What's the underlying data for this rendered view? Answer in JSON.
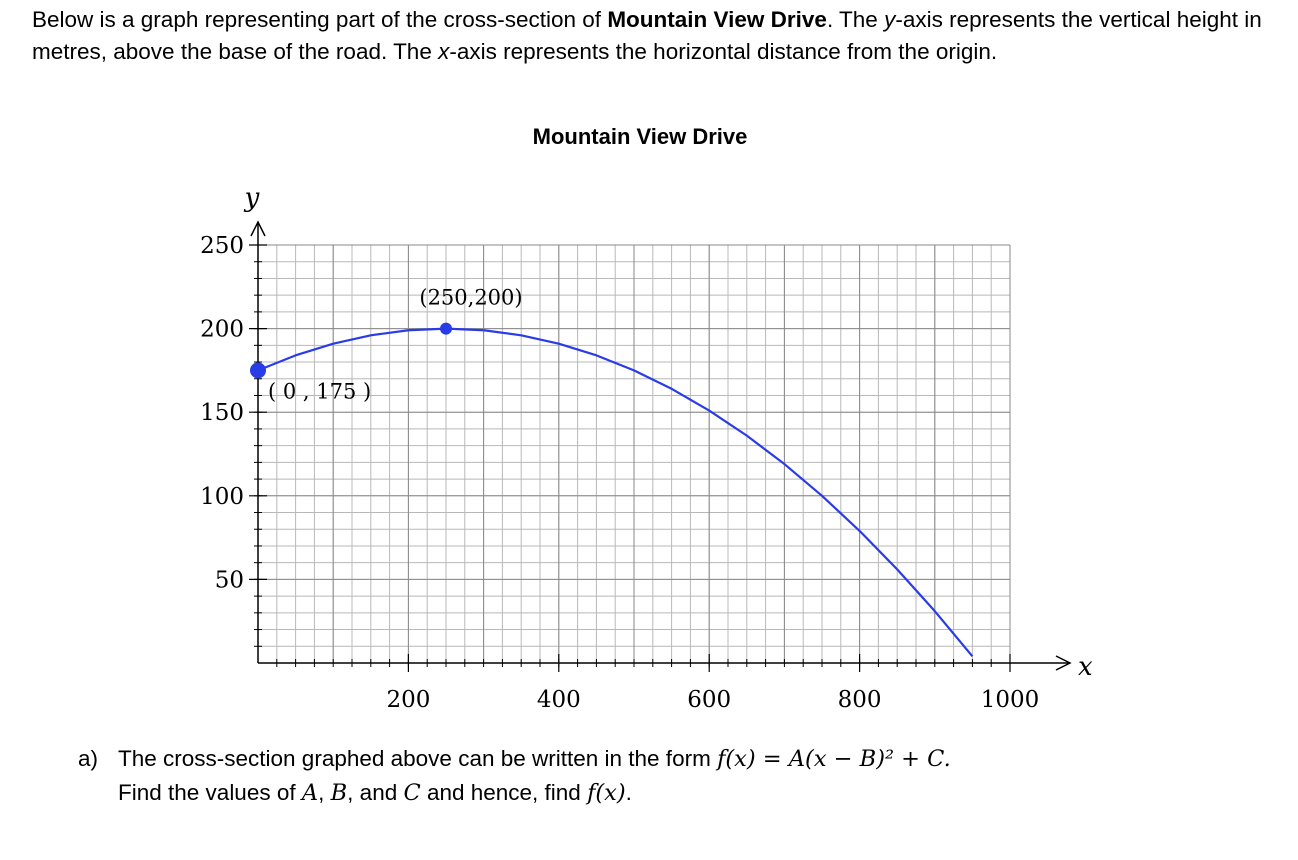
{
  "intro": {
    "part1": "Below is a graph representing part of the cross-section of ",
    "road_name": "Mountain View Drive",
    "part2": ".  The ",
    "yvar": "y",
    "part3": "-axis represents the vertical height in metres, above the base of the road. The ",
    "xvar": "x",
    "part4": "-axis represents the horizontal distance from the origin."
  },
  "chart_data": {
    "type": "line",
    "title": "Mountain View Drive",
    "xlabel": "x",
    "ylabel": "y",
    "xlim": [
      0,
      1000
    ],
    "ylim": [
      0,
      250
    ],
    "x_ticks": [
      200,
      400,
      600,
      800,
      1000
    ],
    "y_ticks": [
      50,
      100,
      150,
      200,
      250
    ],
    "grid": true,
    "series": [
      {
        "color": "#2a3be8",
        "x": [
          0,
          50,
          100,
          150,
          200,
          250,
          300,
          350,
          400,
          450,
          500,
          550,
          600,
          650,
          700,
          750,
          800,
          850,
          900,
          950
        ],
        "y": [
          175,
          184,
          191,
          196,
          199,
          200,
          199,
          196,
          191,
          184,
          175,
          164,
          151,
          136,
          119,
          100,
          79,
          56,
          31,
          4
        ]
      }
    ],
    "points": [
      {
        "x": 0,
        "y": 175,
        "label": "( 0 , 175 )"
      },
      {
        "x": 250,
        "y": 200,
        "label": "(250,200)"
      }
    ]
  },
  "question": {
    "label": "a)",
    "line1_text": "The cross-section graphed above can be written in the form ",
    "line1_math": "f(x) = A(x − B)² + C.",
    "line2_a": "Find the values of ",
    "A": "A",
    "sep1": ", ",
    "B": "B",
    "sep2": ", and ",
    "C": "C",
    "line2_b": " and hence, find ",
    "fx": "f(x)",
    "end": "."
  }
}
